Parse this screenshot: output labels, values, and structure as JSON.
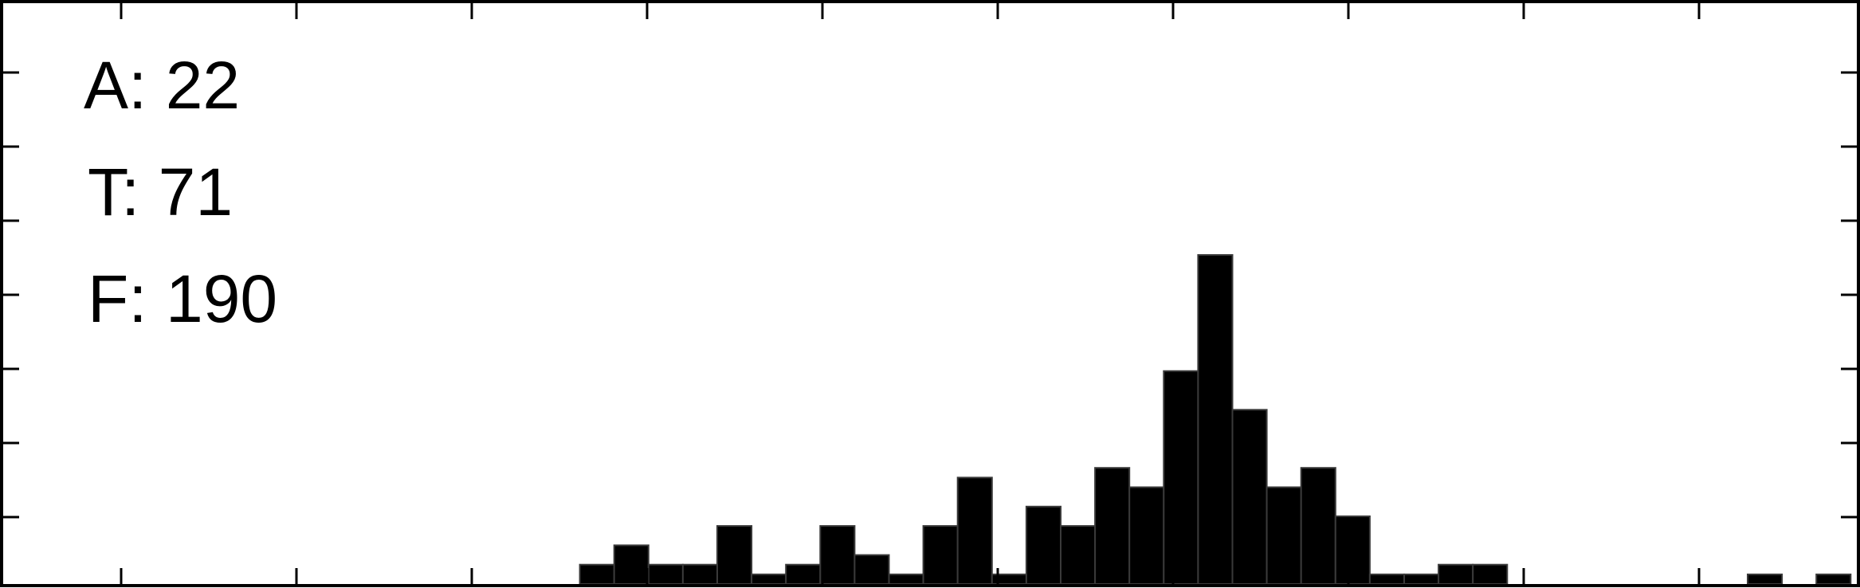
{
  "annotations": [
    {
      "label": "A",
      "value": "22",
      "text": "A: 22"
    },
    {
      "label": "T",
      "value": "71",
      "text": "T: 71"
    },
    {
      "label": "F",
      "value": "190",
      "text": "F: 190"
    }
  ],
  "chart_data": {
    "type": "bar",
    "title": "",
    "xlabel": "",
    "ylabel": "",
    "bin_start": 0,
    "bin_width": 1,
    "values": [
      0,
      0,
      0,
      0,
      0,
      0,
      0,
      0,
      0,
      0,
      0,
      0,
      0,
      0,
      0,
      0,
      1,
      2,
      1,
      1,
      3,
      0.5,
      1,
      3,
      1.5,
      0.5,
      3,
      5.5,
      0.5,
      4,
      3,
      6,
      5,
      11,
      17,
      9,
      5,
      6,
      3.5,
      0.5,
      0.5,
      1,
      1,
      0,
      0,
      0,
      0,
      0,
      0,
      0,
      0.5,
      0,
      0.5,
      0
    ],
    "ylim": [
      0,
      18
    ],
    "grid": false,
    "bar_color": "#000000",
    "background_color": "#ffffff"
  }
}
